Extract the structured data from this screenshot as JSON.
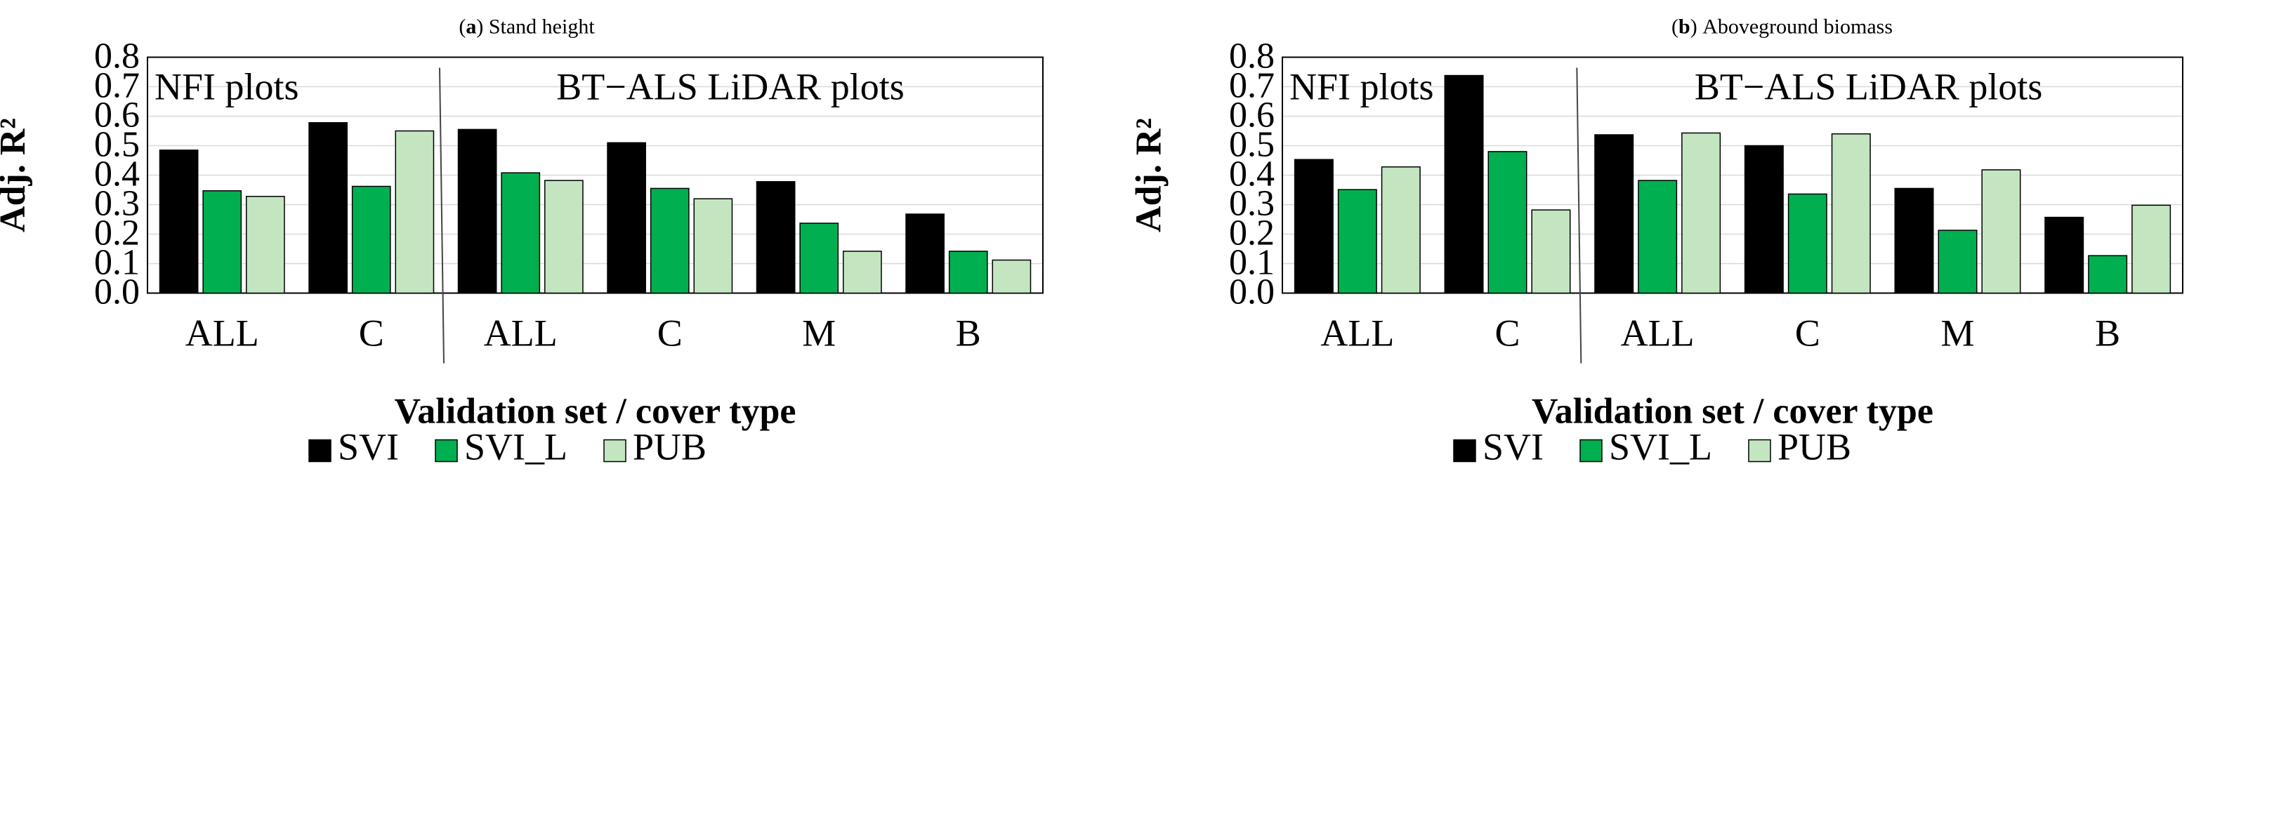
{
  "colors": {
    "SVI": "#000000",
    "SVI_L": "#00b050",
    "PUB": "#c3e6c1",
    "grid": "#d9d9d9"
  },
  "legend": [
    {
      "key": "SVI",
      "label": "SVI"
    },
    {
      "key": "SVI_L",
      "label": "SVI_L"
    },
    {
      "key": "PUB",
      "label": "PUB"
    }
  ],
  "chart_data": [
    {
      "type": "bar",
      "title_letter": "a",
      "title_text": "Stand height",
      "ylabel": "Adj. R²",
      "xlabel": "Validation set / cover type",
      "ylim": [
        0,
        0.8
      ],
      "yticks": [
        "0.0",
        "0.1",
        "0.2",
        "0.3",
        "0.4",
        "0.5",
        "0.6",
        "0.7",
        "0.8"
      ],
      "categories": [
        "ALL",
        "C",
        "ALL",
        "C",
        "M",
        "B"
      ],
      "regions": [
        "NFI plots",
        "BT−ALS LiDAR plots"
      ],
      "series": [
        {
          "name": "SVI",
          "values": [
            0.485,
            0.578,
            0.555,
            0.51,
            0.378,
            0.268
          ]
        },
        {
          "name": "SVI_L",
          "values": [
            0.347,
            0.362,
            0.408,
            0.355,
            0.237,
            0.142
          ]
        },
        {
          "name": "PUB",
          "values": [
            0.328,
            0.55,
            0.382,
            0.32,
            0.142,
            0.112
          ]
        }
      ]
    },
    {
      "type": "bar",
      "title_letter": "b",
      "title_text": "Aboveground biomass",
      "ylabel": "Adj. R²",
      "xlabel": "Validation set / cover type",
      "ylim": [
        0,
        0.8
      ],
      "yticks": [
        "0.0",
        "0.1",
        "0.2",
        "0.3",
        "0.4",
        "0.5",
        "0.6",
        "0.7",
        "0.8"
      ],
      "categories": [
        "ALL",
        "C",
        "ALL",
        "C",
        "M",
        "B"
      ],
      "regions": [
        "NFI plots",
        "BT−ALS LiDAR plots"
      ],
      "series": [
        {
          "name": "SVI",
          "values": [
            0.453,
            0.738,
            0.537,
            0.5,
            0.355,
            0.257
          ]
        },
        {
          "name": "SVI_L",
          "values": [
            0.351,
            0.48,
            0.382,
            0.336,
            0.213,
            0.127
          ]
        },
        {
          "name": "PUB",
          "values": [
            0.428,
            0.282,
            0.543,
            0.54,
            0.418,
            0.298
          ]
        }
      ]
    }
  ]
}
